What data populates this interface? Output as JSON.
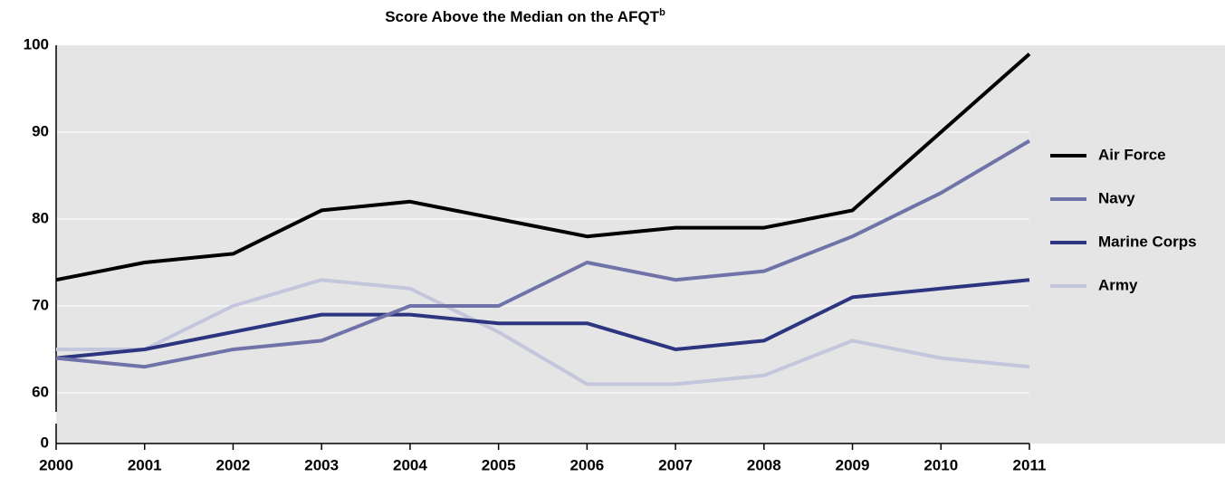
{
  "chart_data": {
    "type": "line",
    "title": "Score Above the Median on the AFQT",
    "title_superscript": "b",
    "x": [
      2000,
      2001,
      2002,
      2003,
      2004,
      2005,
      2006,
      2007,
      2008,
      2009,
      2010,
      2011
    ],
    "xlim": [
      2000,
      2011
    ],
    "xticks": [
      2000,
      2001,
      2002,
      2003,
      2004,
      2005,
      2006,
      2007,
      2008,
      2009,
      2010,
      2011
    ],
    "ylim": [
      0,
      100
    ],
    "yticks": [
      0,
      60,
      70,
      80,
      90,
      100
    ],
    "axis_break": [
      0,
      60
    ],
    "grid": true,
    "legend": "right",
    "series": [
      {
        "name": "Air Force",
        "color": "#000000",
        "values": [
          73,
          75,
          76,
          81,
          82,
          80,
          78,
          79,
          79,
          81,
          90,
          99
        ]
      },
      {
        "name": "Navy",
        "color": "#6f73a8",
        "values": [
          64,
          63,
          65,
          66,
          70,
          70,
          75,
          73,
          74,
          78,
          83,
          89
        ]
      },
      {
        "name": "Marine Corps",
        "color": "#2e3580",
        "values": [
          64,
          65,
          67,
          69,
          69,
          68,
          68,
          65,
          66,
          71,
          72,
          73
        ]
      },
      {
        "name": "Army",
        "color": "#c3c6dc",
        "values": [
          65,
          65,
          70,
          73,
          72,
          67,
          61,
          61,
          62,
          66,
          64,
          63
        ]
      }
    ]
  }
}
